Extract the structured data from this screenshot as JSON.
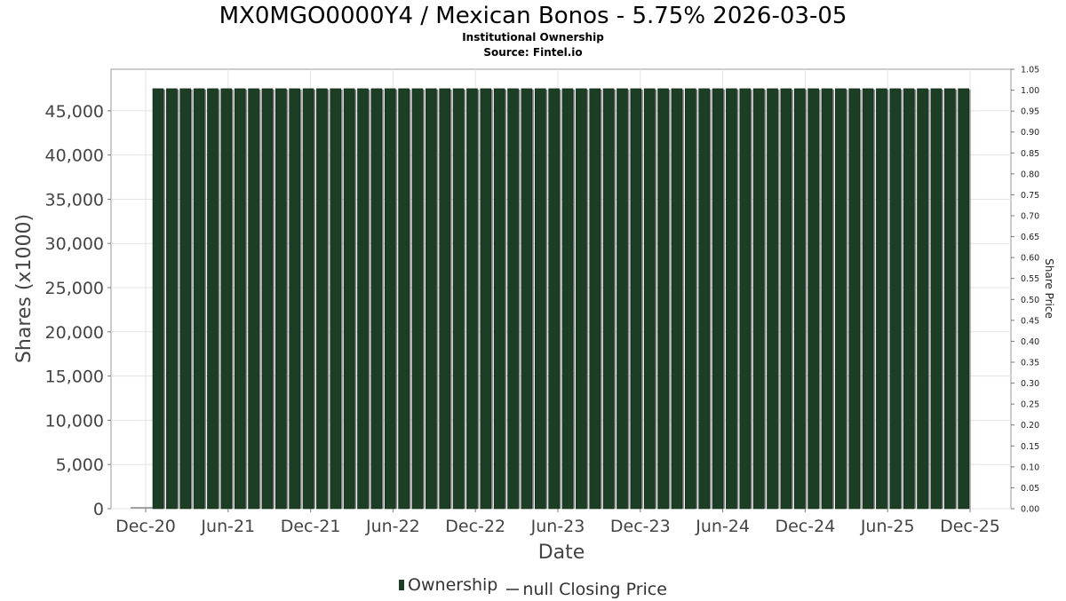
{
  "chart_data": {
    "type": "bar",
    "title": "MX0MGO0000Y4 / Mexican Bonos - 5.75% 2026-03-05",
    "subtitles": [
      "Institutional Ownership",
      "Source: Fintel.io"
    ],
    "xlabel": "Date",
    "ylabel": "Shares (x1000)",
    "y2label": "Share Price",
    "ylim": [
      0,
      49700
    ],
    "y2lim": [
      0,
      1.05
    ],
    "yticks": [
      0,
      5000,
      10000,
      15000,
      20000,
      25000,
      30000,
      35000,
      40000,
      45000
    ],
    "ytick_labels": [
      "0",
      "5,000",
      "10,000",
      "15,000",
      "20,000",
      "25,000",
      "30,000",
      "35,000",
      "40,000",
      "45,000"
    ],
    "y2ticks": [
      "0.00",
      "0.05",
      "0.10",
      "0.15",
      "0.20",
      "0.25",
      "0.30",
      "0.35",
      "0.40",
      "0.45",
      "0.50",
      "0.55",
      "0.60",
      "0.65",
      "0.70",
      "0.75",
      "0.80",
      "0.85",
      "0.90",
      "0.95",
      "1.00",
      "1.05"
    ],
    "xtick_labels": [
      "Dec-20",
      "Jun-21",
      "Dec-21",
      "Jun-22",
      "Dec-22",
      "Jun-23",
      "Dec-23",
      "Jun-24",
      "Dec-24",
      "Jun-25",
      "Dec-25"
    ],
    "grid": true,
    "legend_position": "bottom",
    "colors": {
      "bar": "#1b3e25",
      "bar_edge": "#0d2414",
      "bar_shadow": "#8a8a8a",
      "grid": "#e3e3e3"
    },
    "series": [
      {
        "name": "Ownership",
        "bar_count": 60,
        "value": 47500
      },
      {
        "name": "null Closing Price",
        "values": []
      }
    ]
  }
}
